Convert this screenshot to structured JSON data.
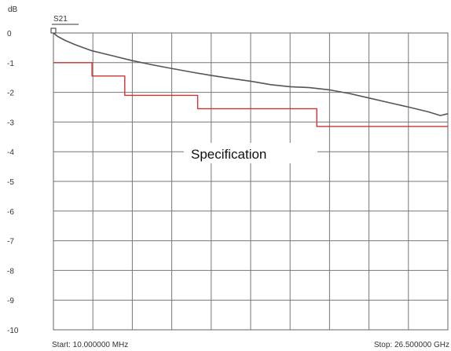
{
  "chart_data": {
    "type": "line",
    "y_unit": "dB",
    "trace_label": "S21",
    "ylim": [
      -10,
      0
    ],
    "y_ticks": [
      "0",
      "-1",
      "-2",
      "-3",
      "-4",
      "-5",
      "-6",
      "-7",
      "-8",
      "-9",
      "-10"
    ],
    "y_tick_values": [
      0,
      -1,
      -2,
      -3,
      -4,
      -5,
      -6,
      -7,
      -8,
      -9,
      -10
    ],
    "x_divisions": 10,
    "x_range_ghz": [
      0.01,
      26.5
    ],
    "start_label": "Start: 10.000000 MHz",
    "stop_label": "Stop: 26.500000 GHz",
    "annotation": "Specification",
    "grid": true,
    "series": [
      {
        "name": "S21",
        "color": "#555555",
        "x": [
          0.01,
          0.3,
          0.8,
          1.5,
          2.6,
          4.0,
          5.3,
          6.6,
          8.0,
          9.3,
          10.6,
          11.9,
          13.3,
          14.6,
          15.9,
          17.2,
          18.6,
          19.9,
          21.2,
          22.5,
          23.9,
          25.2,
          26.0,
          26.5
        ],
        "y": [
          0.0,
          -0.12,
          -0.25,
          -0.4,
          -0.6,
          -0.77,
          -0.93,
          -1.07,
          -1.2,
          -1.32,
          -1.43,
          -1.53,
          -1.63,
          -1.74,
          -1.81,
          -1.84,
          -1.92,
          -2.04,
          -2.19,
          -2.34,
          -2.5,
          -2.66,
          -2.78,
          -2.72
        ]
      },
      {
        "name": "Specification",
        "color": "#cc3333",
        "x": [
          0.01,
          2.6,
          2.6,
          4.8,
          4.8,
          9.7,
          9.7,
          17.7,
          17.7,
          26.5
        ],
        "y": [
          -1.0,
          -1.0,
          -1.45,
          -1.45,
          -2.1,
          -2.1,
          -2.55,
          -2.55,
          -3.15,
          -3.15
        ]
      }
    ]
  }
}
